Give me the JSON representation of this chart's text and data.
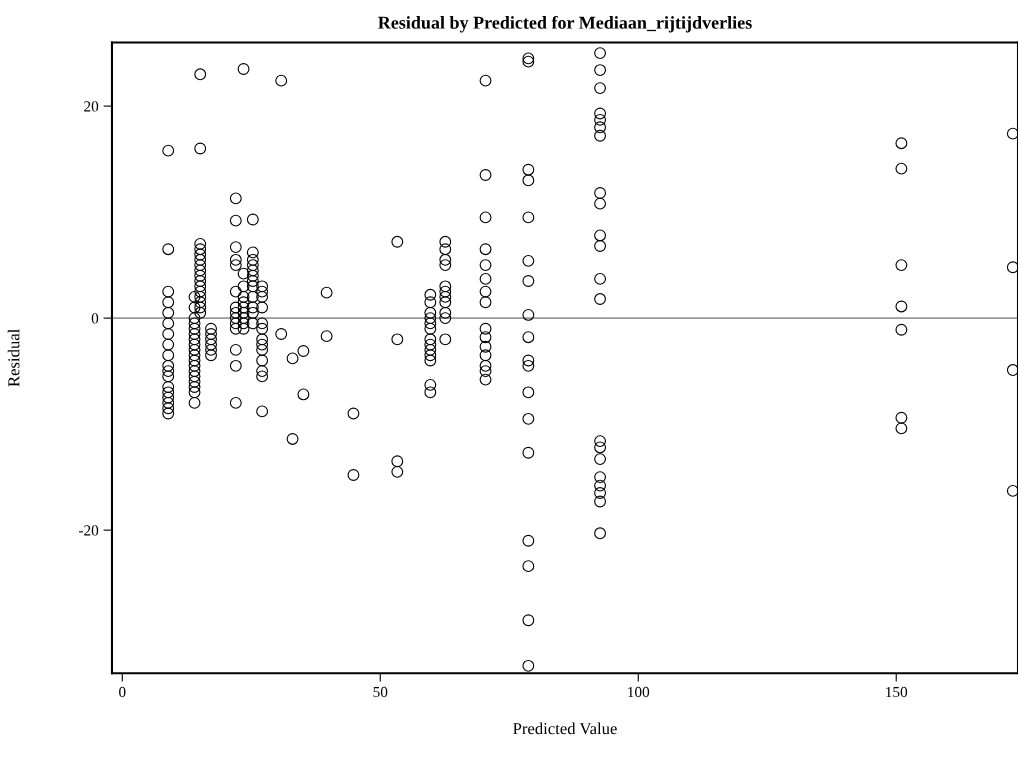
{
  "chart_data": {
    "type": "scatter",
    "title": "Residual by Predicted for Mediaan_rijtijdverlies",
    "xlabel": "Predicted Value",
    "ylabel": "Residual",
    "xlim": [
      -2,
      173.6
    ],
    "ylim": [
      -33.5,
      26
    ],
    "xticks": [
      0,
      50,
      100,
      150
    ],
    "yticks": [
      -20,
      0,
      20
    ],
    "grid": false,
    "marker": "circle",
    "ref_lines": [
      {
        "axis": "y",
        "value": 0,
        "color": "#999999"
      }
    ],
    "series": [
      {
        "color": "#000000",
        "x": [
          8.9,
          8.9,
          8.9,
          8.9,
          8.9,
          8.9,
          8.9,
          8.9,
          8.9,
          8.9,
          8.9,
          8.9,
          8.9,
          8.9,
          8.9,
          8.9,
          8.9,
          8.9,
          15.1,
          15.1,
          15.1,
          15.1,
          15.1,
          15.1,
          15.1,
          15.1,
          15.1,
          15.1,
          15.1,
          15.1,
          15.1,
          15.1,
          15.1,
          15.1,
          14,
          14,
          14,
          14,
          14,
          14,
          14,
          14,
          14,
          14,
          14,
          14,
          14,
          14,
          14,
          14,
          14,
          14,
          17.2,
          17.2,
          17.2,
          17.2,
          17.2,
          17.2,
          22,
          22,
          22,
          22,
          22,
          22,
          22,
          22,
          22,
          22,
          22,
          22,
          22,
          22,
          23.5,
          23.5,
          23.5,
          23.5,
          23.5,
          23.5,
          23.5,
          23.5,
          23.5,
          23.5,
          25.3,
          25.3,
          25.3,
          25.3,
          25.3,
          25.3,
          25.3,
          25.3,
          25.3,
          25.3,
          25.3,
          25.3,
          27.1,
          27.1,
          27.1,
          27.1,
          27.1,
          27.1,
          27.1,
          27.1,
          27.1,
          27.1,
          27.1,
          27.1,
          27.1,
          30.8,
          30.8,
          33,
          33,
          35.1,
          35.1,
          39.6,
          39.6,
          44.8,
          44.8,
          53.3,
          53.3,
          53.3,
          53.3,
          59.7,
          59.7,
          59.7,
          59.7,
          59.7,
          59.7,
          59.7,
          59.7,
          59.7,
          59.7,
          59.7,
          59.7,
          59.7,
          62.6,
          62.6,
          62.6,
          62.6,
          62.6,
          62.6,
          62.6,
          62.6,
          62.6,
          62.6,
          62.6,
          70.4,
          70.4,
          70.4,
          70.4,
          70.4,
          70.4,
          70.4,
          70.4,
          70.4,
          70.4,
          70.4,
          70.4,
          70.4,
          70.4,
          70.4,
          78.7,
          78.7,
          78.7,
          78.7,
          78.7,
          78.7,
          78.7,
          78.7,
          78.7,
          78.7,
          78.7,
          78.7,
          78.7,
          78.7,
          78.7,
          78.7,
          78.7,
          78.7,
          92.6,
          92.6,
          92.6,
          92.6,
          92.6,
          92.6,
          92.6,
          92.6,
          92.6,
          92.6,
          92.6,
          92.6,
          92.6,
          92.6,
          92.6,
          92.6,
          92.6,
          92.6,
          92.6,
          92.6,
          92.6,
          151,
          151,
          151,
          151,
          151,
          151,
          151,
          172.6,
          172.6,
          172.6,
          172.6
        ],
        "values": [
          15.8,
          6.5,
          2.5,
          1.5,
          0.5,
          -0.5,
          -1.5,
          -2.5,
          -3.5,
          -4.5,
          -5,
          -5.5,
          -6.5,
          -7,
          -7.5,
          -8,
          -8.5,
          -9,
          23,
          16,
          7,
          6.5,
          6,
          5.5,
          5,
          4.5,
          4,
          3.5,
          3,
          2.5,
          2,
          1.5,
          1,
          0.5,
          2,
          1,
          0,
          -0.5,
          -1,
          -1.5,
          -2,
          -2.5,
          -3,
          -3.5,
          -4,
          -4.5,
          -5,
          -5.5,
          -6,
          -6.5,
          -7,
          -8,
          -1,
          -1.5,
          -2,
          -2.5,
          -3,
          -3.5,
          11.3,
          9.2,
          6.7,
          5.5,
          5,
          2.5,
          1,
          0.5,
          0,
          -0.5,
          -1,
          -3,
          -4.5,
          -8,
          23.5,
          4.2,
          3,
          2,
          1.5,
          1,
          0.5,
          0,
          -0.5,
          -1,
          9.3,
          6.2,
          5.5,
          5,
          4.5,
          4,
          3.5,
          3,
          2,
          1,
          0.5,
          -0.5,
          3,
          2.5,
          2,
          1,
          -0.5,
          -1,
          -2,
          -2.5,
          -3,
          -4,
          -5,
          -5.5,
          -8.8,
          22.4,
          -1.5,
          -3.8,
          -11.4,
          -3.1,
          -7.2,
          2.4,
          -1.7,
          -9,
          -14.8,
          7.2,
          -2,
          -13.5,
          -14.5,
          2.2,
          1.5,
          0.5,
          0,
          -0.5,
          -1,
          -2,
          -2.5,
          -3,
          -3.5,
          -4,
          -6.3,
          -7,
          7.2,
          6.5,
          5.5,
          5,
          3,
          2.5,
          2,
          1.5,
          0.5,
          0,
          -2,
          22.4,
          13.5,
          9.5,
          6.5,
          5,
          3.7,
          2.5,
          1.5,
          -1,
          -1.8,
          -2.7,
          -3.5,
          -4.5,
          -5,
          -5.8,
          24.5,
          24.2,
          14,
          13,
          9.5,
          5.4,
          3.5,
          0.3,
          -1.8,
          -4,
          -4.5,
          -7,
          -9.5,
          -12.7,
          -21,
          -23.4,
          -28.5,
          -32.8,
          25,
          23.4,
          21.7,
          19.3,
          18.7,
          18,
          17.2,
          11.8,
          10.8,
          7.8,
          6.8,
          3.7,
          1.8,
          -11.6,
          -12.2,
          -13.3,
          -15,
          -15.8,
          -16.5,
          -17.3,
          -20.3,
          16.5,
          14.1,
          5,
          1.1,
          -1.1,
          -9.4,
          -10.4,
          17.4,
          4.8,
          -4.9,
          -16.3
        ]
      }
    ]
  }
}
